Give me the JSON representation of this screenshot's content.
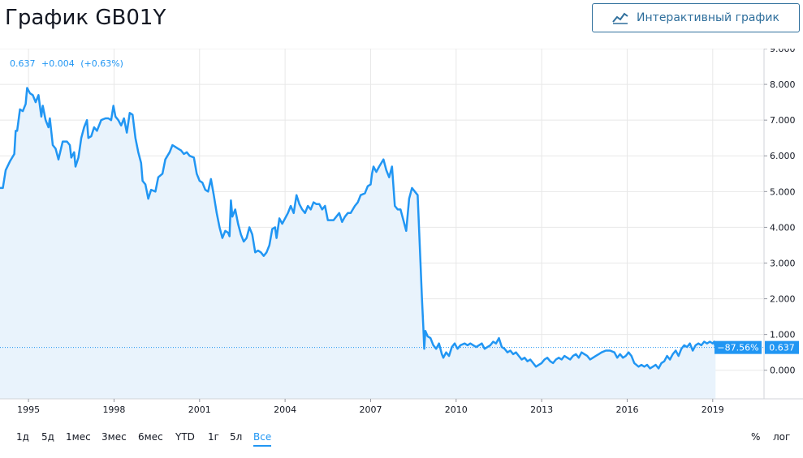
{
  "title": "График GB01Y",
  "interactive_button": {
    "label": "Интерактивный график",
    "icon": "chart-line-icon"
  },
  "legend": {
    "value": "0.637",
    "change": "+0.004",
    "change_pct": "(+0.63%)"
  },
  "badges": {
    "change_pct": "−87.56%",
    "last_value": "0.637"
  },
  "colors": {
    "line": "#2196f3",
    "area": "#e9f3fc",
    "badge": "#2196f3",
    "grid": "#e8e8e8"
  },
  "range_buttons": [
    "1д",
    "5д",
    "1мес",
    "3мес",
    "6мес",
    "YTD",
    "1г",
    "5л",
    "Все"
  ],
  "active_range": "Все",
  "scale_buttons": {
    "percent": "%",
    "log": "лог"
  },
  "chart_data": {
    "type": "area",
    "title": "",
    "xlabel": "",
    "ylabel": "",
    "ylim": [
      -0.8,
      9.0
    ],
    "xlim": [
      1994.0,
      2020.8
    ],
    "y_ticks": [
      "0.000",
      "1.000",
      "2.000",
      "3.000",
      "4.000",
      "5.000",
      "6.000",
      "7.000",
      "8.000",
      "9.000"
    ],
    "x_ticks": [
      "1995",
      "1998",
      "2001",
      "2004",
      "2007",
      "2010",
      "2013",
      "2016",
      "2019"
    ],
    "grid": true,
    "last_value_line": 0.637,
    "series": [
      {
        "points": [
          [
            1994.0,
            5.1
          ],
          [
            1994.1,
            5.1
          ],
          [
            1994.2,
            5.6
          ],
          [
            1994.35,
            5.85
          ],
          [
            1994.5,
            6.05
          ],
          [
            1994.55,
            6.7
          ],
          [
            1994.6,
            6.7
          ],
          [
            1994.7,
            7.3
          ],
          [
            1994.8,
            7.25
          ],
          [
            1994.9,
            7.45
          ],
          [
            1994.95,
            7.9
          ],
          [
            1995.05,
            7.75
          ],
          [
            1995.15,
            7.7
          ],
          [
            1995.25,
            7.5
          ],
          [
            1995.35,
            7.7
          ],
          [
            1995.45,
            7.1
          ],
          [
            1995.5,
            7.4
          ],
          [
            1995.6,
            7.0
          ],
          [
            1995.7,
            6.8
          ],
          [
            1995.75,
            7.05
          ],
          [
            1995.85,
            6.3
          ],
          [
            1995.95,
            6.2
          ],
          [
            1996.05,
            5.9
          ],
          [
            1996.2,
            6.4
          ],
          [
            1996.35,
            6.4
          ],
          [
            1996.45,
            6.3
          ],
          [
            1996.5,
            5.95
          ],
          [
            1996.6,
            6.1
          ],
          [
            1996.65,
            5.7
          ],
          [
            1996.75,
            5.95
          ],
          [
            1996.85,
            6.5
          ],
          [
            1996.95,
            6.8
          ],
          [
            1997.05,
            7.0
          ],
          [
            1997.1,
            6.5
          ],
          [
            1997.2,
            6.55
          ],
          [
            1997.3,
            6.8
          ],
          [
            1997.4,
            6.7
          ],
          [
            1997.55,
            7.0
          ],
          [
            1997.7,
            7.05
          ],
          [
            1997.8,
            7.05
          ],
          [
            1997.9,
            7.0
          ],
          [
            1997.98,
            7.4
          ],
          [
            1998.05,
            7.1
          ],
          [
            1998.15,
            7.0
          ],
          [
            1998.25,
            6.85
          ],
          [
            1998.35,
            7.05
          ],
          [
            1998.45,
            6.65
          ],
          [
            1998.55,
            7.2
          ],
          [
            1998.65,
            7.15
          ],
          [
            1998.75,
            6.5
          ],
          [
            1998.85,
            6.1
          ],
          [
            1998.95,
            5.8
          ],
          [
            1999.0,
            5.3
          ],
          [
            1999.1,
            5.2
          ],
          [
            1999.2,
            4.8
          ],
          [
            1999.3,
            5.05
          ],
          [
            1999.45,
            5.0
          ],
          [
            1999.55,
            5.4
          ],
          [
            1999.7,
            5.5
          ],
          [
            1999.8,
            5.9
          ],
          [
            1999.95,
            6.1
          ],
          [
            2000.05,
            6.3
          ],
          [
            2000.15,
            6.25
          ],
          [
            2000.25,
            6.2
          ],
          [
            2000.35,
            6.15
          ],
          [
            2000.45,
            6.05
          ],
          [
            2000.55,
            6.1
          ],
          [
            2000.65,
            6.0
          ],
          [
            2000.8,
            5.95
          ],
          [
            2000.9,
            5.5
          ],
          [
            2001.0,
            5.3
          ],
          [
            2001.1,
            5.25
          ],
          [
            2001.2,
            5.05
          ],
          [
            2001.3,
            5.0
          ],
          [
            2001.4,
            5.35
          ],
          [
            2001.5,
            4.9
          ],
          [
            2001.6,
            4.4
          ],
          [
            2001.7,
            4.0
          ],
          [
            2001.8,
            3.7
          ],
          [
            2001.9,
            3.9
          ],
          [
            2002.0,
            3.85
          ],
          [
            2002.05,
            3.75
          ],
          [
            2002.1,
            4.75
          ],
          [
            2002.15,
            4.3
          ],
          [
            2002.25,
            4.5
          ],
          [
            2002.35,
            4.1
          ],
          [
            2002.45,
            3.8
          ],
          [
            2002.55,
            3.6
          ],
          [
            2002.65,
            3.7
          ],
          [
            2002.75,
            4.0
          ],
          [
            2002.85,
            3.8
          ],
          [
            2002.95,
            3.3
          ],
          [
            2003.05,
            3.35
          ],
          [
            2003.15,
            3.3
          ],
          [
            2003.25,
            3.2
          ],
          [
            2003.35,
            3.3
          ],
          [
            2003.45,
            3.5
          ],
          [
            2003.55,
            3.95
          ],
          [
            2003.65,
            4.0
          ],
          [
            2003.7,
            3.7
          ],
          [
            2003.8,
            4.25
          ],
          [
            2003.9,
            4.1
          ],
          [
            2004.0,
            4.25
          ],
          [
            2004.1,
            4.4
          ],
          [
            2004.2,
            4.6
          ],
          [
            2004.3,
            4.4
          ],
          [
            2004.4,
            4.9
          ],
          [
            2004.5,
            4.65
          ],
          [
            2004.6,
            4.5
          ],
          [
            2004.7,
            4.4
          ],
          [
            2004.8,
            4.6
          ],
          [
            2004.9,
            4.5
          ],
          [
            2005.0,
            4.7
          ],
          [
            2005.1,
            4.65
          ],
          [
            2005.2,
            4.65
          ],
          [
            2005.3,
            4.5
          ],
          [
            2005.4,
            4.6
          ],
          [
            2005.5,
            4.2
          ],
          [
            2005.7,
            4.2
          ],
          [
            2005.8,
            4.3
          ],
          [
            2005.9,
            4.4
          ],
          [
            2006.0,
            4.15
          ],
          [
            2006.1,
            4.3
          ],
          [
            2006.2,
            4.4
          ],
          [
            2006.3,
            4.4
          ],
          [
            2006.45,
            4.6
          ],
          [
            2006.55,
            4.7
          ],
          [
            2006.65,
            4.9
          ],
          [
            2006.8,
            4.95
          ],
          [
            2006.9,
            5.15
          ],
          [
            2007.0,
            5.2
          ],
          [
            2007.05,
            5.5
          ],
          [
            2007.1,
            5.7
          ],
          [
            2007.2,
            5.55
          ],
          [
            2007.3,
            5.7
          ],
          [
            2007.45,
            5.9
          ],
          [
            2007.55,
            5.6
          ],
          [
            2007.65,
            5.4
          ],
          [
            2007.75,
            5.7
          ],
          [
            2007.85,
            4.6
          ],
          [
            2007.95,
            4.5
          ],
          [
            2008.05,
            4.5
          ],
          [
            2008.15,
            4.2
          ],
          [
            2008.25,
            3.9
          ],
          [
            2008.35,
            4.8
          ],
          [
            2008.45,
            5.1
          ],
          [
            2008.55,
            5.0
          ],
          [
            2008.65,
            4.9
          ],
          [
            2008.75,
            3.0
          ],
          [
            2008.8,
            2.0
          ],
          [
            2008.85,
            1.2
          ],
          [
            2008.88,
            0.6
          ],
          [
            2008.92,
            1.1
          ],
          [
            2009.0,
            0.95
          ],
          [
            2009.1,
            0.9
          ],
          [
            2009.2,
            0.7
          ],
          [
            2009.3,
            0.6
          ],
          [
            2009.4,
            0.75
          ],
          [
            2009.5,
            0.45
          ],
          [
            2009.55,
            0.35
          ],
          [
            2009.65,
            0.5
          ],
          [
            2009.75,
            0.4
          ],
          [
            2009.85,
            0.65
          ],
          [
            2009.95,
            0.75
          ],
          [
            2010.05,
            0.6
          ],
          [
            2010.15,
            0.7
          ],
          [
            2010.3,
            0.75
          ],
          [
            2010.4,
            0.7
          ],
          [
            2010.5,
            0.75
          ],
          [
            2010.6,
            0.7
          ],
          [
            2010.7,
            0.65
          ],
          [
            2010.8,
            0.7
          ],
          [
            2010.9,
            0.75
          ],
          [
            2011.0,
            0.6
          ],
          [
            2011.1,
            0.65
          ],
          [
            2011.2,
            0.7
          ],
          [
            2011.3,
            0.8
          ],
          [
            2011.4,
            0.75
          ],
          [
            2011.5,
            0.9
          ],
          [
            2011.6,
            0.65
          ],
          [
            2011.7,
            0.6
          ],
          [
            2011.8,
            0.5
          ],
          [
            2011.9,
            0.55
          ],
          [
            2012.0,
            0.45
          ],
          [
            2012.1,
            0.5
          ],
          [
            2012.2,
            0.4
          ],
          [
            2012.3,
            0.3
          ],
          [
            2012.4,
            0.35
          ],
          [
            2012.5,
            0.25
          ],
          [
            2012.6,
            0.3
          ],
          [
            2012.7,
            0.2
          ],
          [
            2012.8,
            0.1
          ],
          [
            2012.9,
            0.15
          ],
          [
            2013.0,
            0.2
          ],
          [
            2013.1,
            0.3
          ],
          [
            2013.2,
            0.35
          ],
          [
            2013.3,
            0.25
          ],
          [
            2013.4,
            0.2
          ],
          [
            2013.5,
            0.3
          ],
          [
            2013.6,
            0.35
          ],
          [
            2013.7,
            0.3
          ],
          [
            2013.8,
            0.4
          ],
          [
            2013.9,
            0.35
          ],
          [
            2014.0,
            0.3
          ],
          [
            2014.1,
            0.4
          ],
          [
            2014.2,
            0.45
          ],
          [
            2014.3,
            0.35
          ],
          [
            2014.4,
            0.5
          ],
          [
            2014.5,
            0.45
          ],
          [
            2014.6,
            0.4
          ],
          [
            2014.7,
            0.3
          ],
          [
            2014.8,
            0.35
          ],
          [
            2014.9,
            0.4
          ],
          [
            2015.0,
            0.45
          ],
          [
            2015.1,
            0.5
          ],
          [
            2015.25,
            0.55
          ],
          [
            2015.4,
            0.55
          ],
          [
            2015.55,
            0.5
          ],
          [
            2015.65,
            0.35
          ],
          [
            2015.75,
            0.45
          ],
          [
            2015.85,
            0.35
          ],
          [
            2015.95,
            0.4
          ],
          [
            2016.05,
            0.5
          ],
          [
            2016.15,
            0.4
          ],
          [
            2016.25,
            0.2
          ],
          [
            2016.4,
            0.1
          ],
          [
            2016.5,
            0.15
          ],
          [
            2016.6,
            0.1
          ],
          [
            2016.7,
            0.15
          ],
          [
            2016.8,
            0.05
          ],
          [
            2016.9,
            0.1
          ],
          [
            2017.0,
            0.15
          ],
          [
            2017.1,
            0.05
          ],
          [
            2017.2,
            0.2
          ],
          [
            2017.3,
            0.25
          ],
          [
            2017.4,
            0.4
          ],
          [
            2017.5,
            0.3
          ],
          [
            2017.6,
            0.45
          ],
          [
            2017.7,
            0.55
          ],
          [
            2017.8,
            0.4
          ],
          [
            2017.9,
            0.6
          ],
          [
            2018.0,
            0.7
          ],
          [
            2018.1,
            0.65
          ],
          [
            2018.2,
            0.75
          ],
          [
            2018.3,
            0.55
          ],
          [
            2018.4,
            0.7
          ],
          [
            2018.5,
            0.75
          ],
          [
            2018.6,
            0.7
          ],
          [
            2018.7,
            0.8
          ],
          [
            2018.8,
            0.75
          ],
          [
            2018.9,
            0.8
          ],
          [
            2019.0,
            0.75
          ],
          [
            2019.05,
            0.8
          ],
          [
            2019.1,
            0.637
          ]
        ]
      }
    ]
  }
}
